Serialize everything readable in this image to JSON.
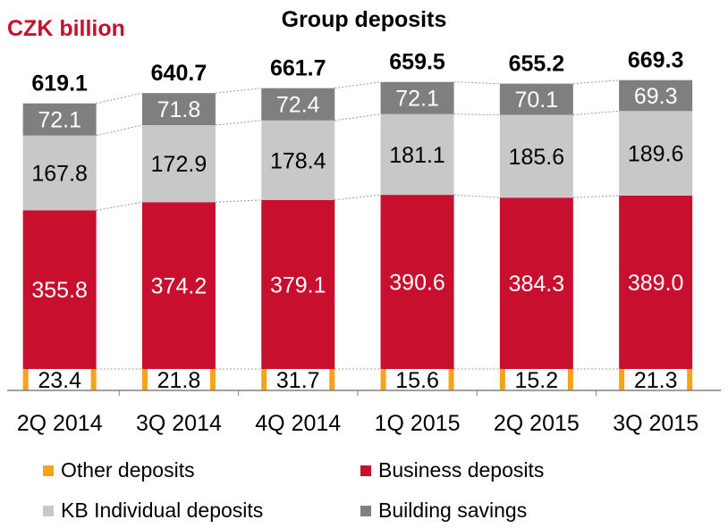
{
  "header": {
    "unit": "CZK billion",
    "title": "Group deposits"
  },
  "legend": [
    {
      "name": "Other deposits",
      "color": "#f5a31a"
    },
    {
      "name": "Business deposits",
      "color": "#c8102e"
    },
    {
      "name": "KB Individual deposits",
      "color": "#c8c8c8"
    },
    {
      "name": "Building savings",
      "color": "#7f7f7f"
    }
  ],
  "chart_data": {
    "type": "bar",
    "stacked": true,
    "categories": [
      "2Q 2014",
      "3Q 2014",
      "4Q 2014",
      "1Q 2015",
      "2Q 2015",
      "3Q 2015"
    ],
    "totals": [
      "619.1",
      "640.7",
      "661.7",
      "659.5",
      "655.2",
      "669.3"
    ],
    "series": [
      {
        "name": "Other deposits",
        "color": "#f5a31a",
        "values": [
          23.4,
          21.8,
          31.7,
          15.6,
          15.2,
          21.3
        ]
      },
      {
        "name": "Business deposits",
        "color": "#c8102e",
        "values": [
          355.8,
          374.2,
          379.1,
          390.6,
          384.3,
          389.0
        ]
      },
      {
        "name": "KB Individual deposits",
        "color": "#c8c8c8",
        "values": [
          167.8,
          172.9,
          178.4,
          181.1,
          185.6,
          189.6
        ]
      },
      {
        "name": "Building savings",
        "color": "#7f7f7f",
        "values": [
          72.1,
          71.8,
          72.4,
          72.1,
          70.1,
          69.3
        ]
      }
    ],
    "title": "Group deposits",
    "ylabel": "CZK billion",
    "legend_position": "bottom",
    "grid": false
  }
}
